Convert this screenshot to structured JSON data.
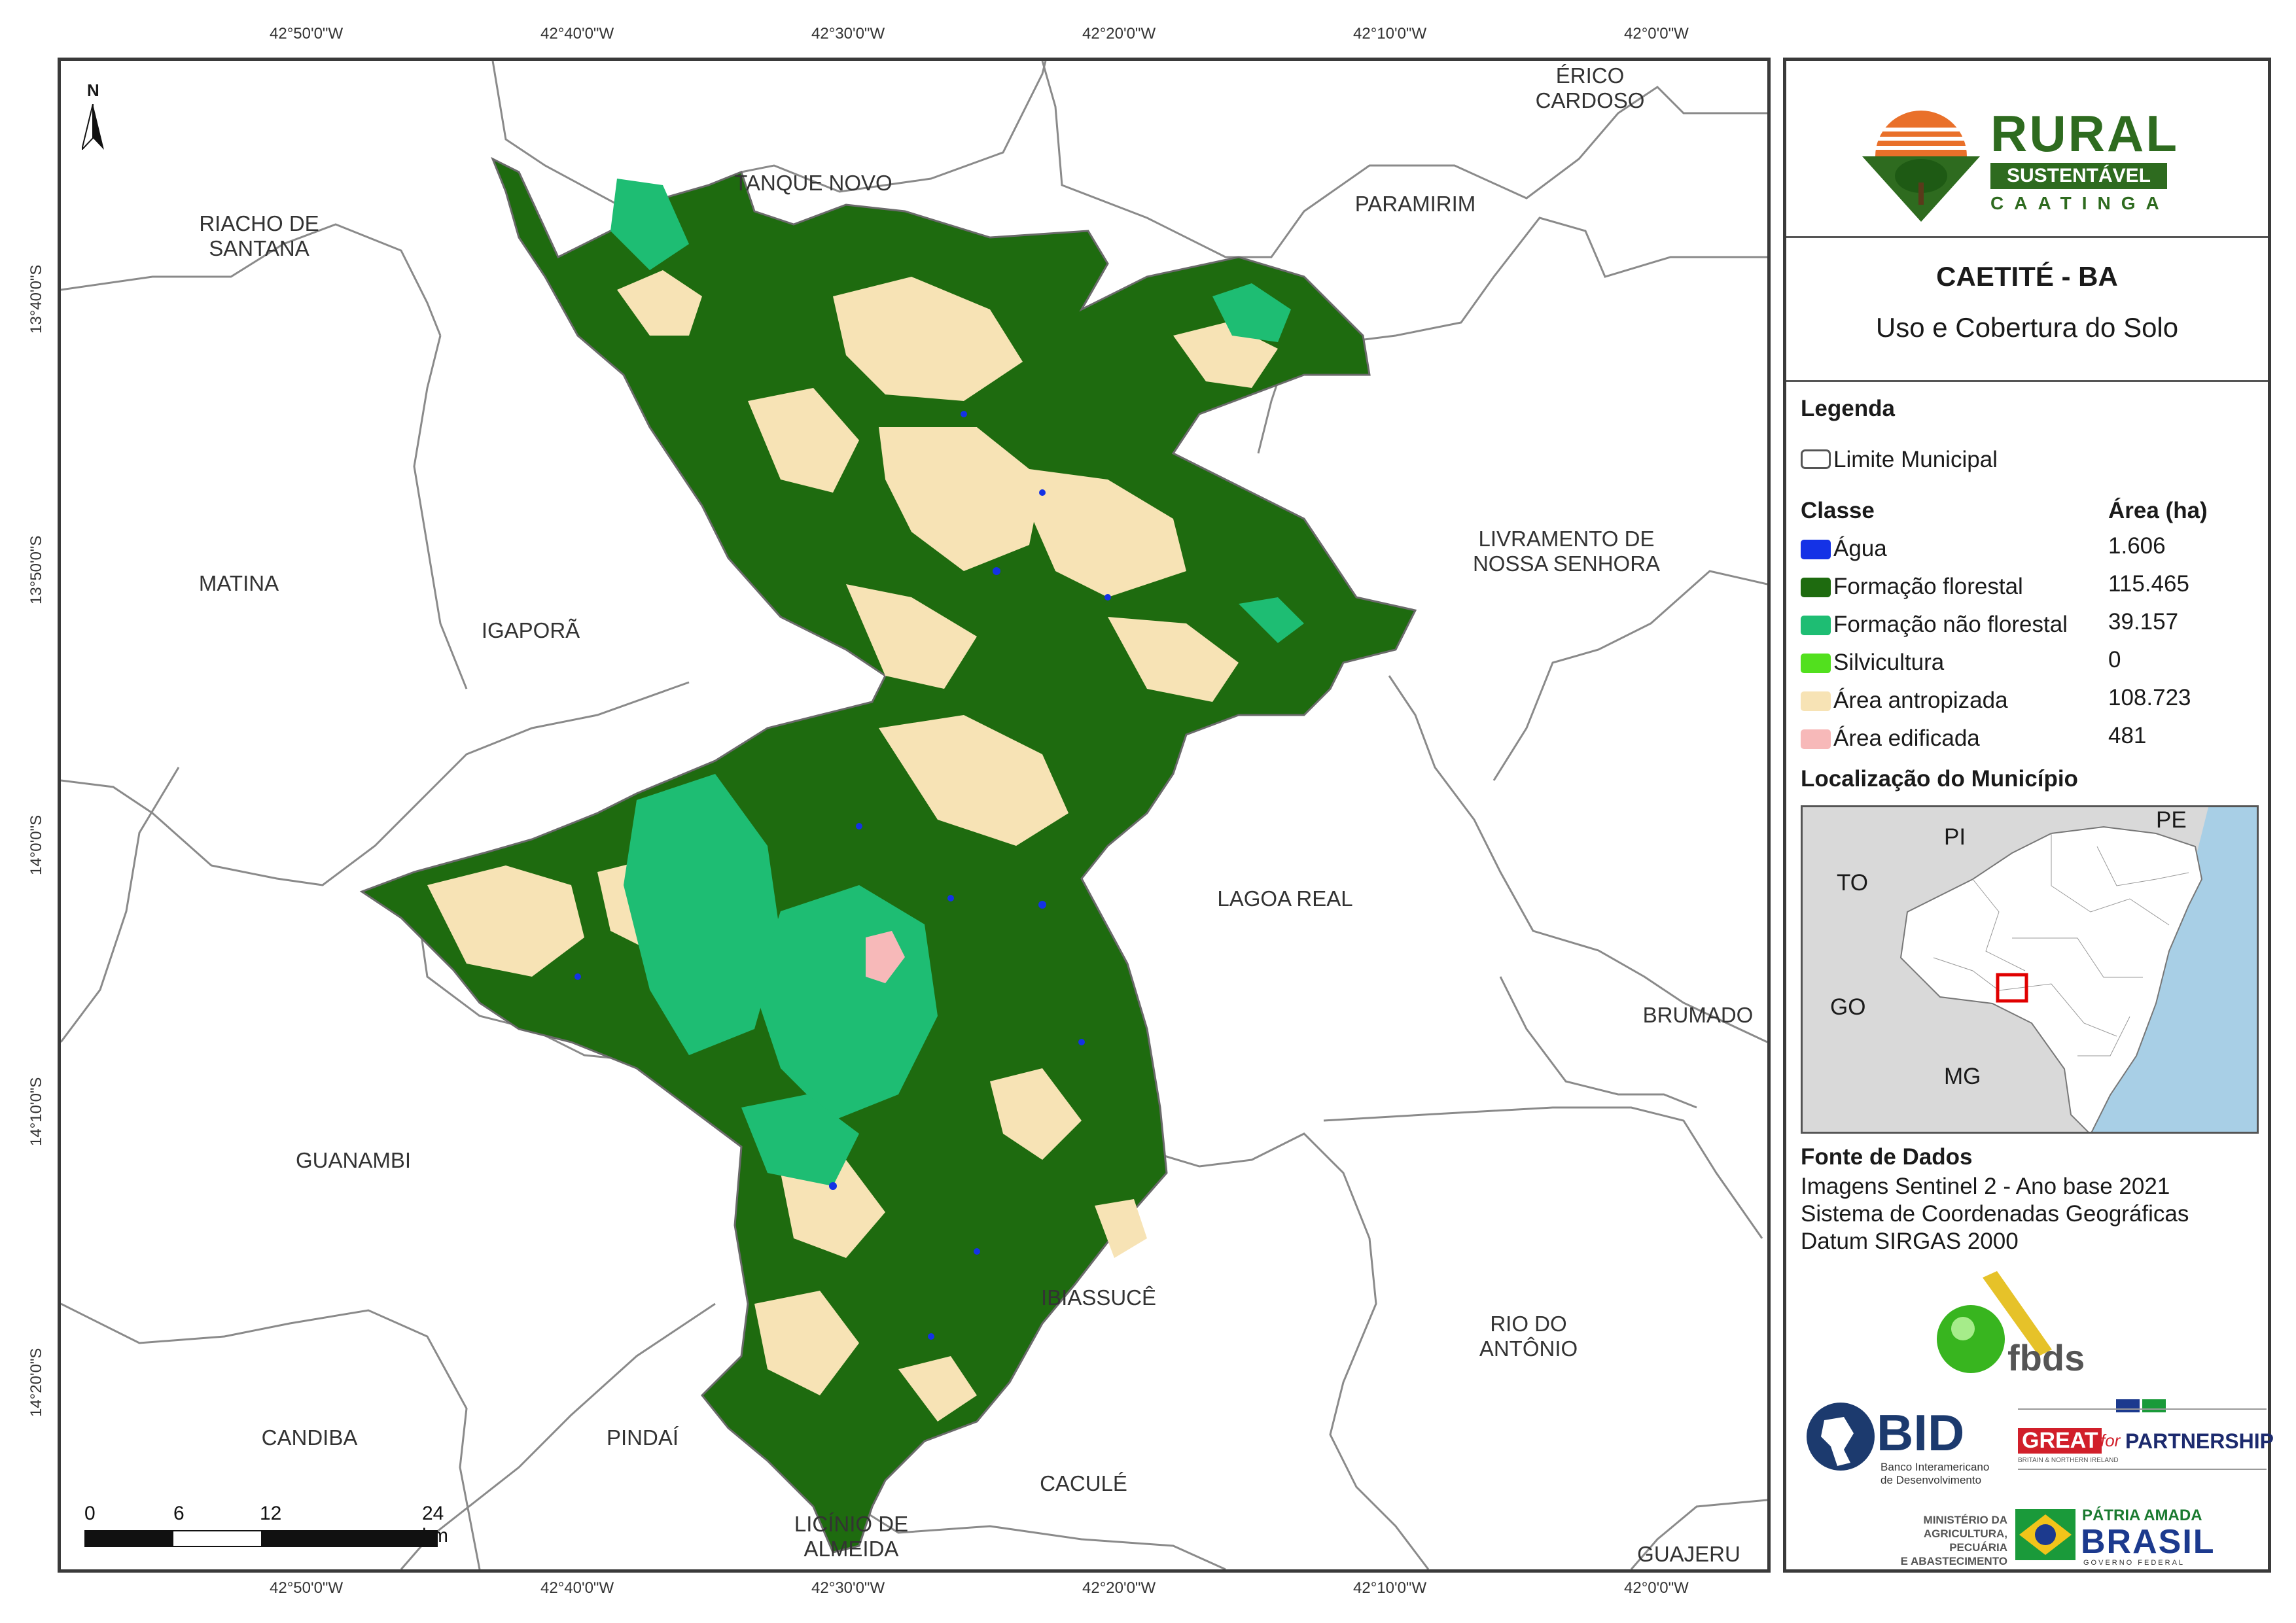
{
  "coordinates": {
    "top_longitudes": [
      "42°50'0\"W",
      "42°40'0\"W",
      "42°30'0\"W",
      "42°20'0\"W",
      "42°10'0\"W",
      "42°0'0\"W"
    ],
    "bottom_longitudes": [
      "42°50'0\"W",
      "42°40'0\"W",
      "42°30'0\"W",
      "42°20'0\"W",
      "42°10'0\"W",
      "42°0'0\"W"
    ],
    "latitudes": [
      "13°40'0\"S",
      "13°50'0\"S",
      "14°0'0\"S",
      "14°10'0\"S",
      "14°20'0\"S"
    ]
  },
  "north_arrow_label": "N",
  "municipalities": {
    "erico_cardoso": [
      "ÉRICO",
      "CARDOSO"
    ],
    "tanque_novo": [
      "TANQUE NOVO"
    ],
    "paramirim": [
      "PARAMIRIM"
    ],
    "riacho_de_santana": [
      "RIACHO DE",
      "SANTANA"
    ],
    "matina": [
      "MATINA"
    ],
    "igapora": [
      "IGAPORÃ"
    ],
    "livramento": [
      "LIVRAMENTO DE",
      "NOSSA SENHORA"
    ],
    "lagoa_real": [
      "LAGOA REAL"
    ],
    "brumado": [
      "BRUMADO"
    ],
    "guanambi": [
      "GUANAMBI"
    ],
    "ibiassuce": [
      "IBIASSUCÊ"
    ],
    "rio_do_antonio": [
      "RIO DO",
      "ANTÔNIO"
    ],
    "candiba": [
      "CANDIBA"
    ],
    "pindai": [
      "PINDAÍ"
    ],
    "cacule": [
      "CACULÉ"
    ],
    "licinio": [
      "LICÍNIO DE",
      "ALMEIDA"
    ],
    "guajeru": [
      "GUAJERU"
    ]
  },
  "scale_bar": {
    "ticks": [
      "0",
      "6",
      "12",
      "24 km"
    ]
  },
  "logo": {
    "line1": "RURAL",
    "line2": "SUSTENTÁVEL",
    "line3": "CAATINGA"
  },
  "title": "CAETITÉ - BA",
  "subtitle": "Uso e Cobertura do Solo",
  "legend": {
    "heading": "Legenda",
    "boundary_label": "Limite Municipal",
    "class_header": "Classe",
    "area_header": "Área (ha)",
    "classes": [
      {
        "label": "Água",
        "area": "1.606",
        "color": "#1432e6"
      },
      {
        "label": "Formação florestal",
        "area": "115.465",
        "color": "#1e6b0f"
      },
      {
        "label": "Formação não florestal",
        "area": "39.157",
        "color": "#1ebd73"
      },
      {
        "label": "Silvicultura",
        "area": "0",
        "color": "#52e01e"
      },
      {
        "label": "Área antropizada",
        "area": "108.723",
        "color": "#f7e3b5"
      },
      {
        "label": "Área edificada",
        "area": "481",
        "color": "#f7b9b9"
      }
    ]
  },
  "location": {
    "heading": "Localização do Município",
    "states": [
      "PI",
      "PE",
      "TO",
      "GO",
      "MG"
    ]
  },
  "source": {
    "heading": "Fonte de Dados",
    "lines": [
      "Imagens Sentinel 2 - Ano base 2021",
      "Sistema de Coordenadas Geográficas",
      "Datum SIRGAS 2000"
    ]
  },
  "partners": {
    "fbds": "fbds",
    "bid": "BID",
    "bid_sub": [
      "Banco Interamericano",
      "de Desenvolvimento"
    ],
    "great": "GREAT",
    "great_for": "for",
    "partnership": "PARTNERSHIP",
    "great_sub": "BRITAIN & NORTHERN IRELAND",
    "ministerio": [
      "MINISTÉRIO DA",
      "AGRICULTURA, PECUÁRIA",
      "E ABASTECIMENTO"
    ],
    "patria": "PÁTRIA AMADA",
    "brasil": "BRASIL",
    "governo": "GOVERNO FEDERAL"
  }
}
